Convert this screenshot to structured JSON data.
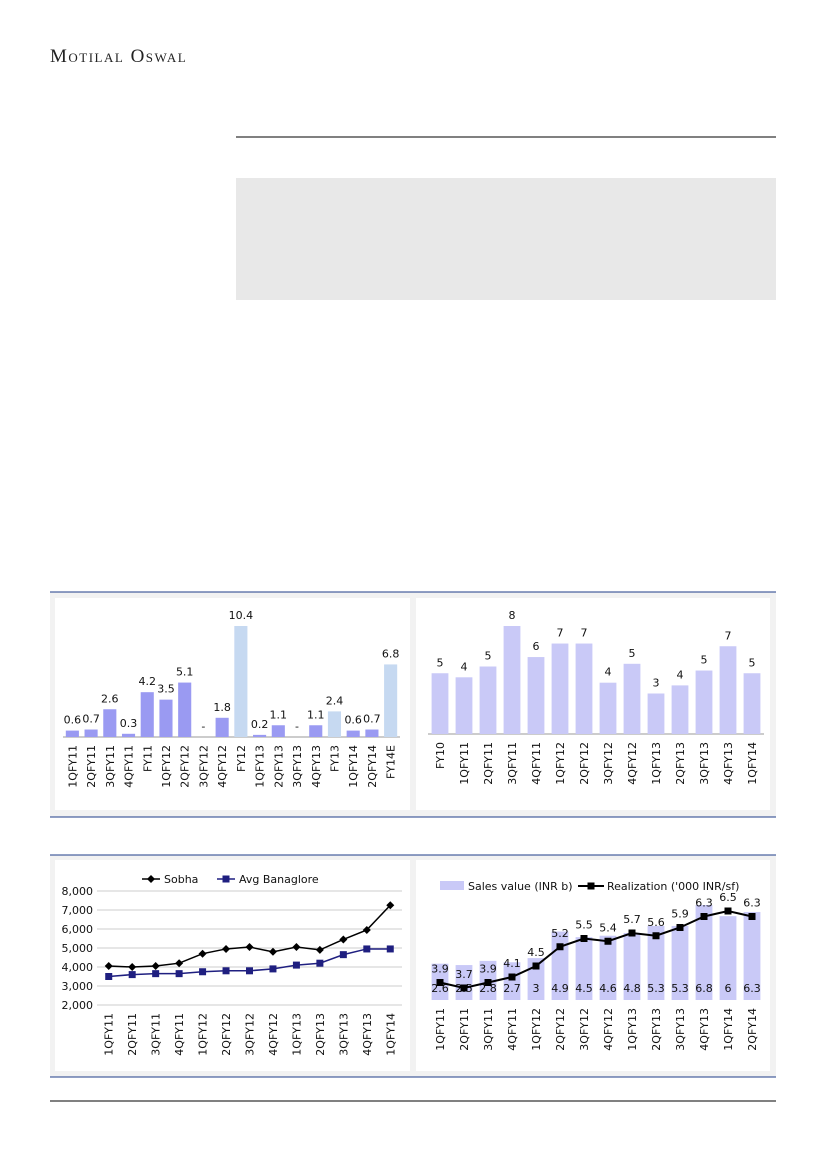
{
  "header": {
    "brand": "Motilal Oswal"
  },
  "chart_data": [
    {
      "type": "bar",
      "categories": [
        "1QFY11",
        "2QFY11",
        "3QFY11",
        "4QFY11",
        "FY11",
        "1QFY12",
        "2QFY12",
        "3QFY12",
        "4QFY12",
        "FY12",
        "1QFY13",
        "2QFY13",
        "3QFY13",
        "4QFY13",
        "FY13",
        "1QFY14",
        "2QFY14",
        "FY14E"
      ],
      "values": [
        0.6,
        0.7,
        2.6,
        0.3,
        4.2,
        3.5,
        5.1,
        0,
        1.8,
        10.4,
        0.2,
        1.1,
        0,
        1.1,
        2.4,
        0.6,
        0.7,
        6.8
      ],
      "value_labels": [
        "0.6",
        "0.7",
        "2.6",
        "0.3",
        "4.2",
        "3.5",
        "5.1",
        "-",
        "1.8",
        "10.4",
        "0.2",
        "1.1",
        "-",
        "1.1",
        "2.4",
        "0.6",
        "0.7",
        "6.8"
      ],
      "colors": [
        "#9a9af2",
        "#9a9af2",
        "#9a9af2",
        "#9a9af2",
        "#9a9af2",
        "#9a9af2",
        "#9a9af2",
        "#9a9af2",
        "#9a9af2",
        "#c6d9f1",
        "#9a9af2",
        "#9a9af2",
        "#9a9af2",
        "#9a9af2",
        "#c6d9f1",
        "#9a9af2",
        "#9a9af2",
        "#c6d9f1"
      ]
    },
    {
      "type": "bar",
      "categories": [
        "FY10",
        "1QFY11",
        "2QFY11",
        "3QFY11",
        "4QFY11",
        "1QFY12",
        "2QFY12",
        "3QFY12",
        "4QFY12",
        "1QFY13",
        "2QFY13",
        "3QFY13",
        "4QFY13",
        "1QFY14"
      ],
      "values": [
        4.5,
        4.2,
        5.0,
        8.0,
        5.7,
        6.7,
        6.7,
        3.8,
        5.2,
        3.0,
        3.6,
        4.7,
        6.5,
        4.5
      ],
      "value_labels": [
        "5",
        "4",
        "5",
        "8",
        "6",
        "7",
        "7",
        "4",
        "5",
        "3",
        "4",
        "5",
        "7",
        "5"
      ],
      "color": "#c9c9f7"
    },
    {
      "type": "line",
      "categories": [
        "1QFY11",
        "2QFY11",
        "3QFY11",
        "4QFY11",
        "1QFY12",
        "2QFY12",
        "3QFY12",
        "4QFY12",
        "1QFY13",
        "2QFY13",
        "3QFY13",
        "4QFY13",
        "1QFY14"
      ],
      "series": [
        {
          "name": "Sobha",
          "color": "#000000",
          "marker": "diamond",
          "values": [
            4050,
            4000,
            4050,
            4200,
            4700,
            4950,
            5050,
            4800,
            5050,
            4900,
            5450,
            5950,
            7250
          ]
        },
        {
          "name": "Avg Banaglore",
          "color": "#1f1f80",
          "marker": "square",
          "values": [
            3500,
            3600,
            3650,
            3650,
            3750,
            3800,
            3800,
            3900,
            4100,
            4200,
            4650,
            4950,
            4950
          ]
        }
      ],
      "ylim": [
        2000,
        8000
      ],
      "yticks": [
        {
          "value": 2000,
          "label": "2,000"
        },
        {
          "value": 3000,
          "label": "3,000"
        },
        {
          "value": 4000,
          "label": "4,000"
        },
        {
          "value": 5000,
          "label": "5,000"
        },
        {
          "value": 6000,
          "label": "6,000"
        },
        {
          "value": 7000,
          "label": "7,000"
        },
        {
          "value": 8000,
          "label": "8,000"
        }
      ],
      "grid": true
    },
    {
      "type": "combo",
      "categories": [
        "1QFY11",
        "2QFY11",
        "3QFY11",
        "4QFY11",
        "1QFY12",
        "2QFY12",
        "3QFY12",
        "4QFY12",
        "1QFY13",
        "2QFY13",
        "3QFY13",
        "4QFY13",
        "1QFY14",
        "2QFY14"
      ],
      "series": [
        {
          "name": "Sales value (INR b)",
          "type": "bar",
          "color": "#c9c9f7",
          "values": [
            2.6,
            2.5,
            2.8,
            2.7,
            3.0,
            4.9,
            4.5,
            4.6,
            4.8,
            5.3,
            5.3,
            6.8,
            6.0,
            6.3
          ]
        },
        {
          "name": "Realization ('000 INR/sf)",
          "type": "line",
          "color": "#000000",
          "values": [
            3.9,
            3.7,
            3.9,
            4.1,
            4.5,
            5.2,
            5.5,
            5.4,
            5.7,
            5.6,
            5.9,
            6.3,
            6.5,
            6.3
          ]
        }
      ]
    }
  ]
}
